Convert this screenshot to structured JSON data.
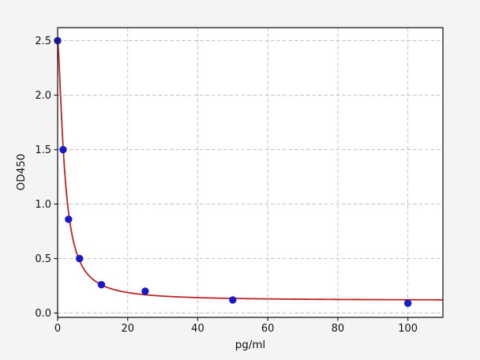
{
  "figure": {
    "background": "#f4f4f4",
    "plot_background": "#ffffff"
  },
  "colors": {
    "grid": "#c3c3c3",
    "spine": "#1a1a1a",
    "tick": "#1a1a1a",
    "text": "#111111",
    "curve_red": "#bf2525",
    "marker_blue": "#1a1ac8"
  },
  "chart_data": {
    "type": "scatter",
    "title": "",
    "xlabel": "pg/ml",
    "ylabel": "OD450",
    "xlim": [
      0,
      110
    ],
    "ylim": [
      -0.04,
      2.62
    ],
    "x_ticks": [
      0,
      20,
      40,
      60,
      80,
      100
    ],
    "x_tick_labels": [
      "0",
      "20",
      "40",
      "60",
      "80",
      "100"
    ],
    "y_ticks": [
      0.0,
      0.5,
      1.0,
      1.5,
      2.0,
      2.5
    ],
    "y_tick_labels": [
      "0.0",
      "0.5",
      "1.0",
      "1.5",
      "2.0",
      "2.5"
    ],
    "grid": true,
    "grid_style": "dashed",
    "legend_position": "none",
    "series": [
      {
        "name": "standard-points",
        "type": "scatter",
        "color": "#1a1ac8",
        "marker": "circle",
        "x": [
          0,
          1.56,
          3.12,
          6.25,
          12.5,
          25,
          50,
          100
        ],
        "y": [
          2.5,
          1.5,
          0.86,
          0.5,
          0.26,
          0.2,
          0.12,
          0.09
        ]
      },
      {
        "name": "4pl-fit-curve",
        "type": "line",
        "color": "#bf2525",
        "fit_model": "4PL",
        "fit_params": {
          "a": 2.5,
          "b": 1.5,
          "c": 2.0,
          "d": 0.115
        },
        "x_start": 0,
        "x_end": 110
      }
    ]
  }
}
